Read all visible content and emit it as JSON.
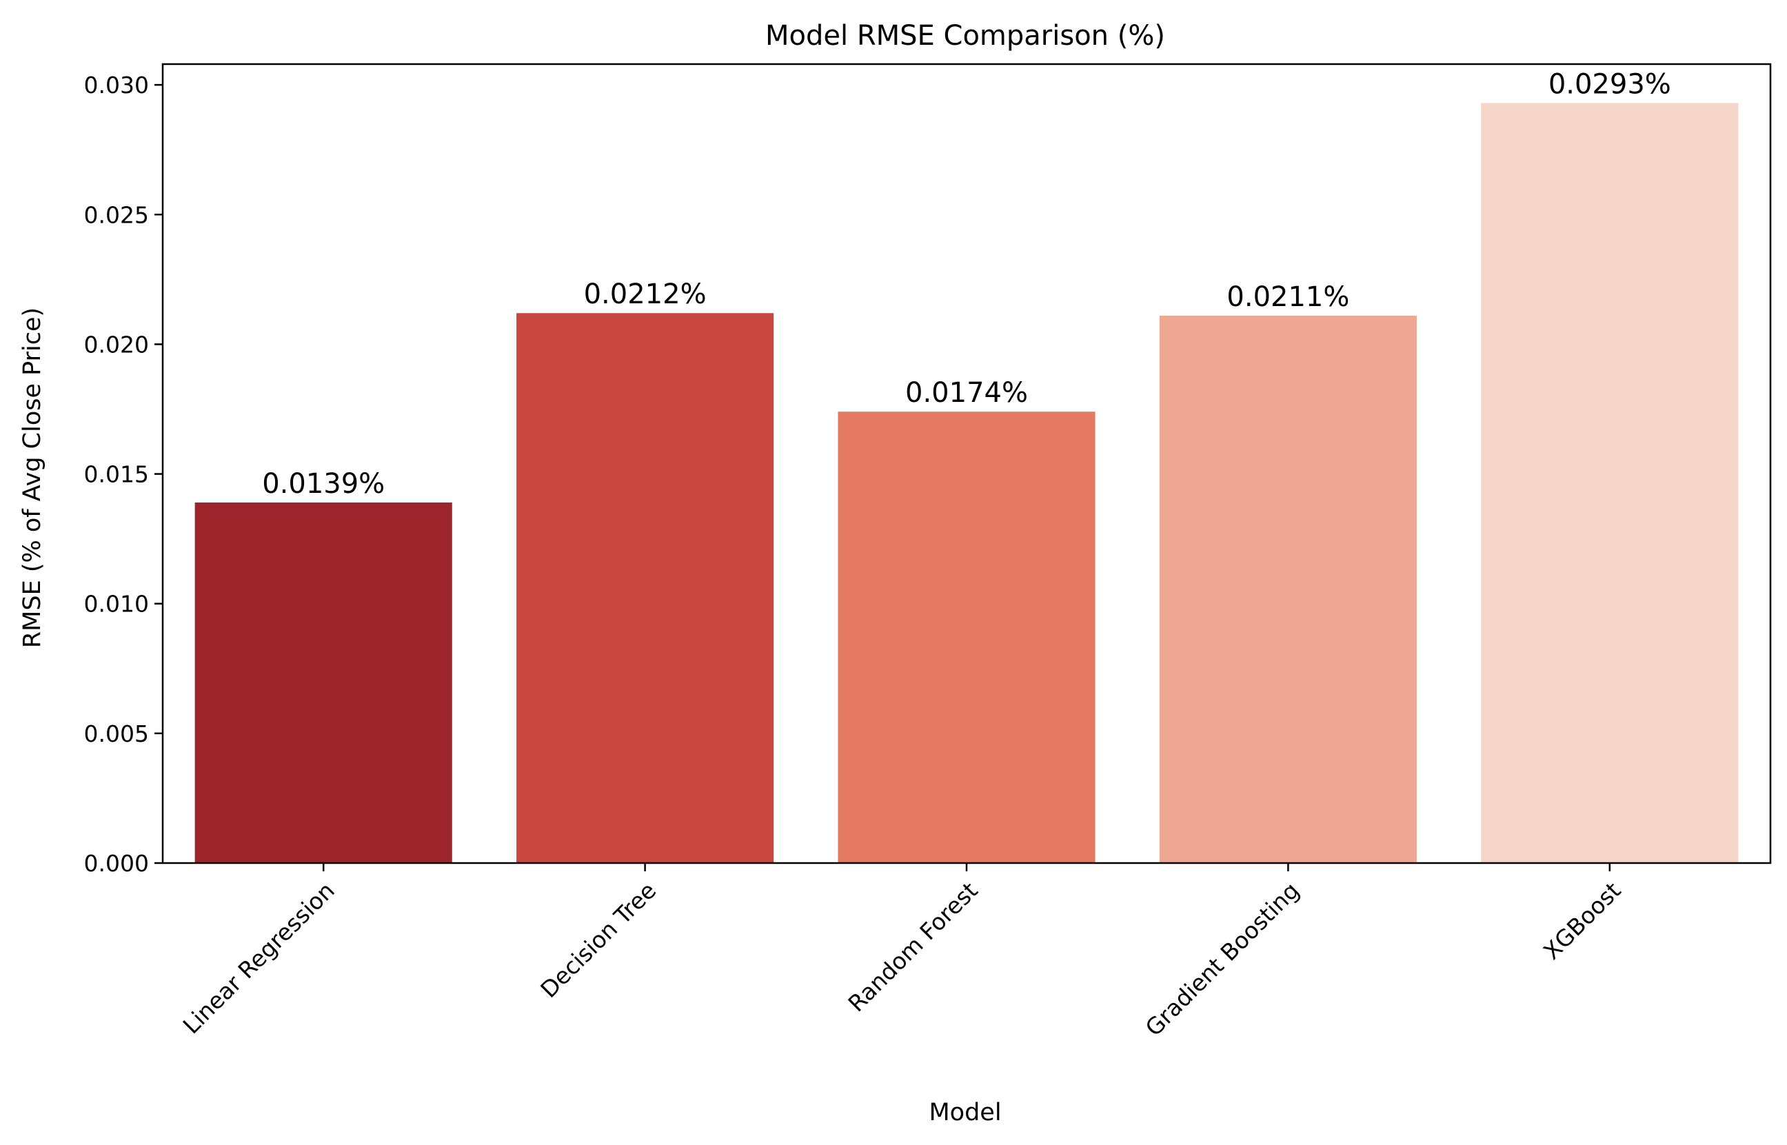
{
  "chart_data": {
    "type": "bar",
    "title": "Model RMSE Comparison (%)",
    "xlabel": "Model",
    "ylabel": "RMSE (% of Avg Close Price)",
    "categories": [
      "Linear Regression",
      "Decision Tree",
      "Random Forest",
      "Gradient Boosting",
      "XGBoost"
    ],
    "values": [
      0.0139,
      0.0212,
      0.0174,
      0.0211,
      0.0293
    ],
    "data_labels": [
      "0.0139%",
      "0.0212%",
      "0.0174%",
      "0.0211%",
      "0.0293%"
    ],
    "colors": [
      "#9b252b",
      "#ca4640",
      "#e57a62",
      "#eda792",
      "#f6d6c8"
    ],
    "ylim": [
      0,
      0.0308
    ],
    "yticks": [
      0.0,
      0.005,
      0.01,
      0.015,
      0.02,
      0.025,
      0.03
    ],
    "ytick_labels": [
      "0.000",
      "0.005",
      "0.010",
      "0.015",
      "0.020",
      "0.025",
      "0.030"
    ],
    "grid": false,
    "legend": "none"
  }
}
